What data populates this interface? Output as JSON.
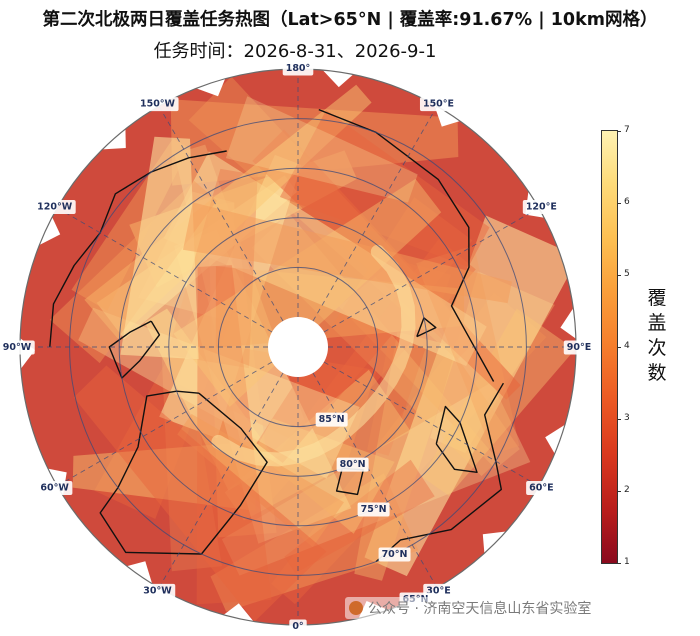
{
  "title": "第二次北极两日覆盖任务热图（Lat>65°N | 覆盖率:91.67% | 10km网格）",
  "subtitle": "任务时间：2026-8-31、2026-9-1",
  "map": {
    "projection": "north-polar-stereographic",
    "lat_min": 65,
    "coverage_percent": 91.67,
    "grid_km": 10,
    "lat_labels": [
      {
        "lat": 85,
        "text": "85°N"
      },
      {
        "lat": 80,
        "text": "80°N"
      },
      {
        "lat": 75,
        "text": "75°N"
      },
      {
        "lat": 70,
        "text": "70°N"
      },
      {
        "lat": 65,
        "text": "65°N"
      }
    ],
    "lon_labels": [
      {
        "lon": 180,
        "text": "180°"
      },
      {
        "lon": 150,
        "text": "150°E"
      },
      {
        "lon": 120,
        "text": "120°E"
      },
      {
        "lon": 90,
        "text": "90°E"
      },
      {
        "lon": 60,
        "text": "60°E"
      },
      {
        "lon": 30,
        "text": "30°E"
      },
      {
        "lon": 0,
        "text": "0°"
      },
      {
        "lon": -30,
        "text": "30°W"
      },
      {
        "lon": -60,
        "text": "60°W"
      },
      {
        "lon": -90,
        "text": "90°W"
      },
      {
        "lon": -120,
        "text": "120°W"
      },
      {
        "lon": -150,
        "text": "150°W"
      }
    ],
    "base_color": "#cf4a3c",
    "swath_colors": [
      "#e8653d",
      "#f39a58",
      "#fbc874",
      "#fde3a0"
    ],
    "gap_color": "#ffffff",
    "graticule_color": "#3c4a78",
    "coastline_color": "#111111"
  },
  "colorbar": {
    "label_chars": [
      "覆",
      "盖",
      "次",
      "数"
    ],
    "min": 1,
    "max": 7,
    "ticks": [
      "7",
      "6",
      "5",
      "4",
      "3",
      "2",
      "1"
    ],
    "colormap": "YlOrRd_r"
  },
  "watermark": {
    "text": "公众号 · 济南空天信息山东省实验室",
    "icon": "wechat-icon"
  }
}
